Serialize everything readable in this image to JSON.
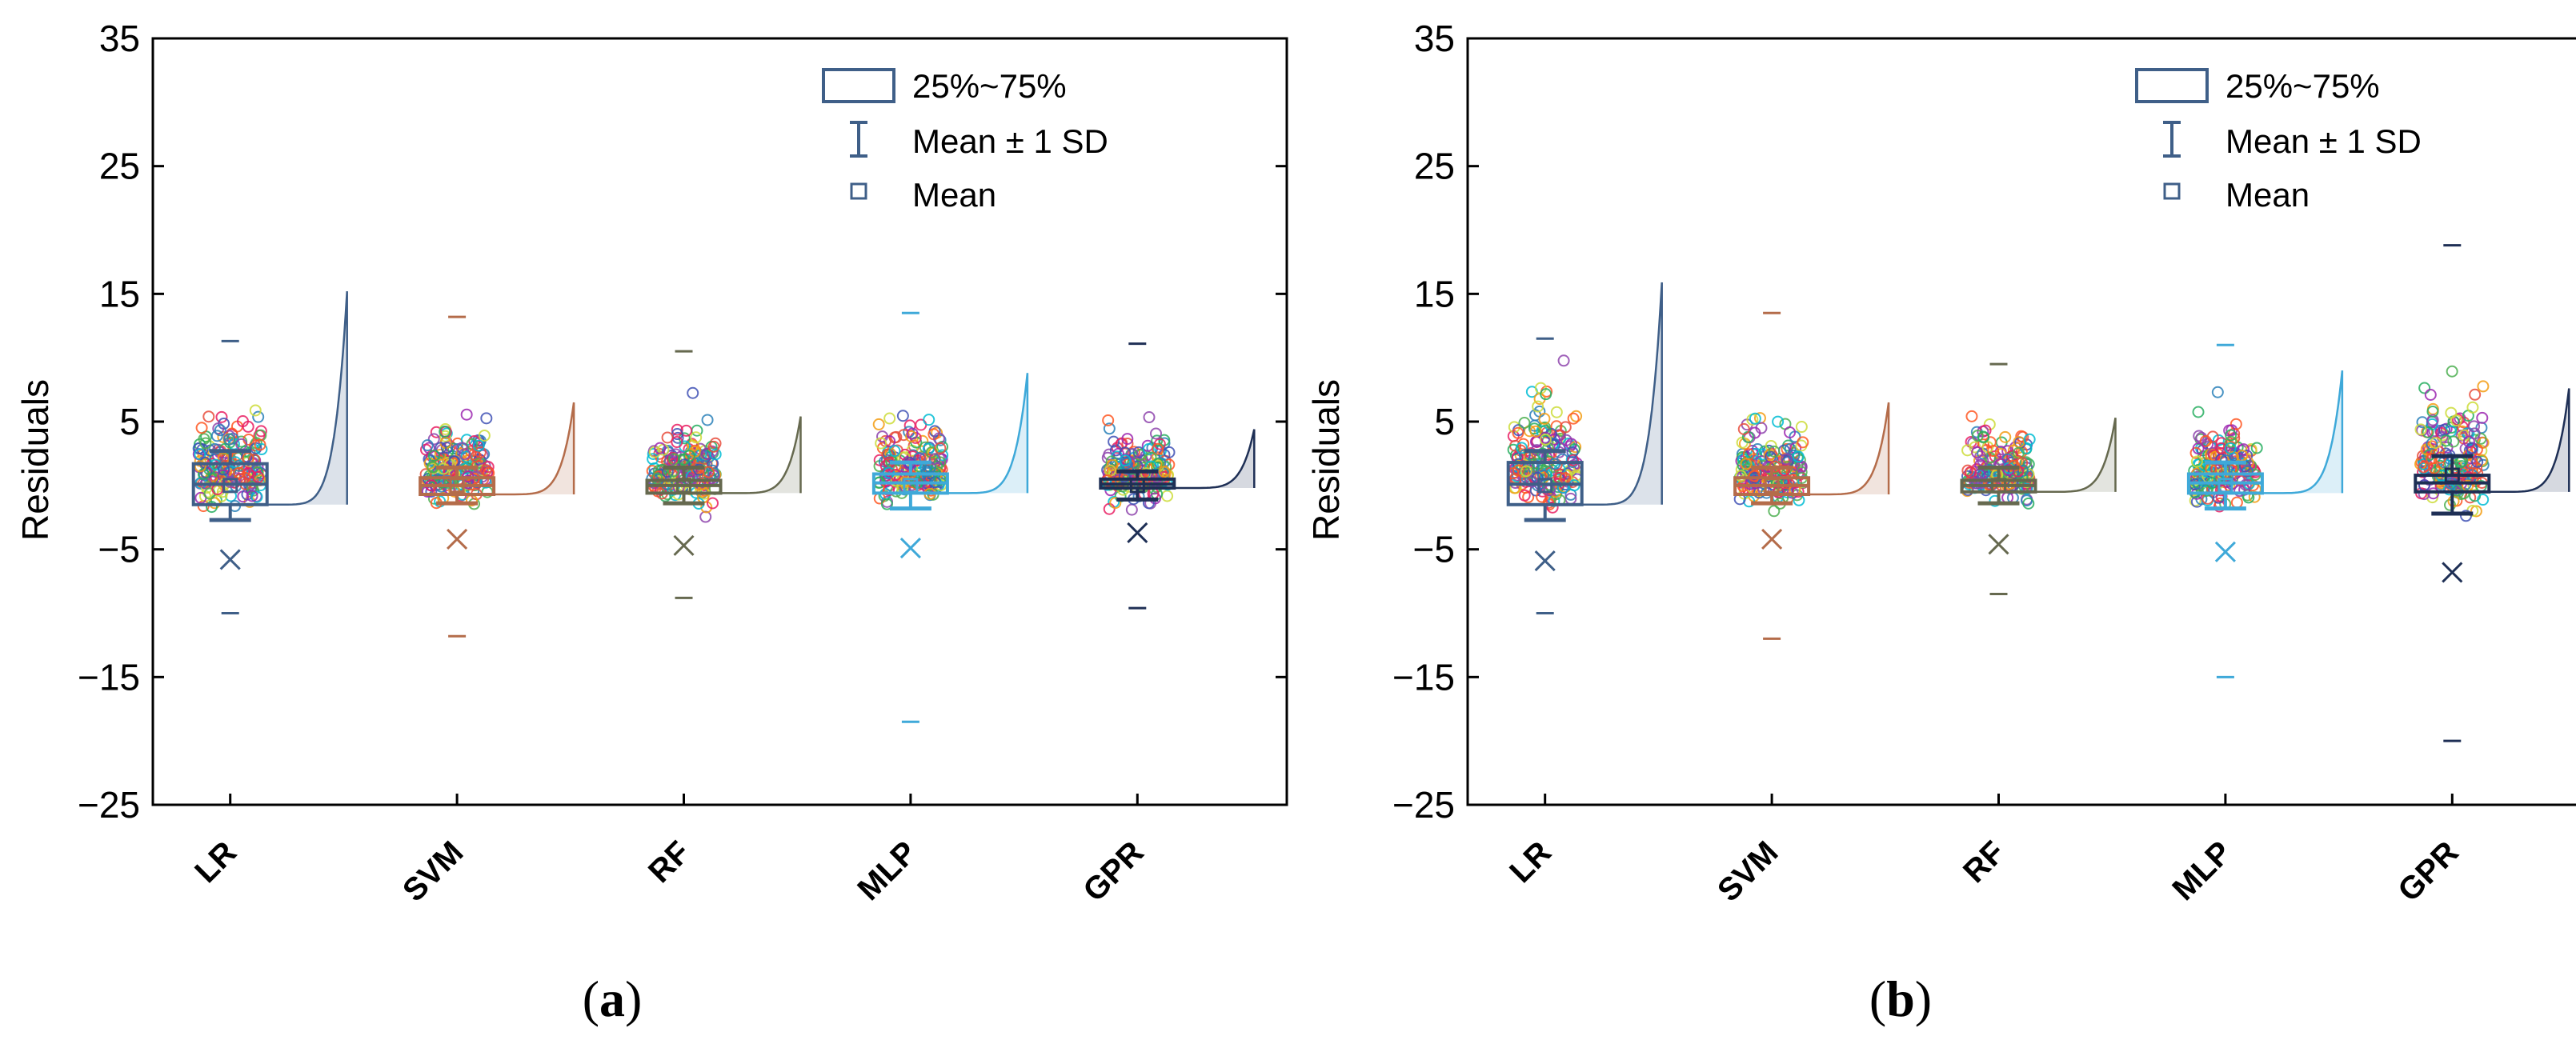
{
  "chart_data": [
    {
      "type": "box",
      "panel_label_open": "(",
      "panel_label_letter": "a",
      "panel_label_close": ")",
      "ylabel": "Residuals",
      "ylim": [
        -25,
        35
      ],
      "yticks": [
        -25,
        -15,
        -5,
        5,
        15,
        25,
        35
      ],
      "ytick_labels": [
        "−25",
        "−15",
        "−5",
        "5",
        "15",
        "25",
        "35"
      ],
      "categories": [
        "LR",
        "SVM",
        "RF",
        "MLP",
        "GPR"
      ],
      "colors": [
        "#3f5f88",
        "#b46c4a",
        "#66694f",
        "#3fa9d9",
        "#1e2f55"
      ],
      "legend": {
        "box": "25%~75%",
        "whisker": "Mean ± 1 SD",
        "mean": "Mean"
      },
      "series": [
        {
          "name": "LR",
          "q1": -1.5,
          "q3": 1.7,
          "median": 0.1,
          "mean": 0.0,
          "sd_low": -2.7,
          "sd_high": 2.7,
          "x_marker": -5.8,
          "max_marker": 11.3,
          "min_marker": -10.0,
          "dist_peak": 15.2,
          "spread": 2.6
        },
        {
          "name": "SVM",
          "q1": -0.7,
          "q3": 0.6,
          "median": 0.0,
          "mean": 0.0,
          "sd_low": -1.4,
          "sd_high": 1.4,
          "x_marker": -4.2,
          "max_marker": 13.2,
          "min_marker": -11.8,
          "dist_peak": 6.5,
          "spread": 2.0
        },
        {
          "name": "RF",
          "q1": -0.6,
          "q3": 0.4,
          "median": 0.0,
          "mean": 0.0,
          "sd_low": -1.4,
          "sd_high": 1.4,
          "x_marker": -4.7,
          "max_marker": 10.5,
          "min_marker": -8.8,
          "dist_peak": 5.4,
          "spread": 1.8
        },
        {
          "name": "MLP",
          "q1": -0.6,
          "q3": 0.9,
          "median": 0.2,
          "mean": 0.0,
          "sd_low": -1.8,
          "sd_high": 1.8,
          "x_marker": -4.9,
          "max_marker": 13.5,
          "min_marker": -18.5,
          "dist_peak": 8.8,
          "spread": 2.2
        },
        {
          "name": "GPR",
          "q1": -0.2,
          "q3": 0.5,
          "median": 0.1,
          "mean": 0.0,
          "sd_low": -1.1,
          "sd_high": 1.1,
          "x_marker": -3.7,
          "max_marker": 11.1,
          "min_marker": -9.6,
          "dist_peak": 4.4,
          "spread": 1.7
        }
      ]
    },
    {
      "type": "box",
      "panel_label_open": "(",
      "panel_label_letter": "b",
      "panel_label_close": ")",
      "ylabel": "Residuals",
      "ylim": [
        -25,
        35
      ],
      "yticks": [
        -25,
        -15,
        -5,
        5,
        15,
        25,
        35
      ],
      "ytick_labels": [
        "−25",
        "−15",
        "−5",
        "5",
        "15",
        "25",
        "35"
      ],
      "categories": [
        "LR",
        "SVM",
        "RF",
        "MLP",
        "GPR"
      ],
      "colors": [
        "#3f5f88",
        "#b46c4a",
        "#66694f",
        "#3fa9d9",
        "#1e2f55"
      ],
      "legend": {
        "box": "25%~75%",
        "whisker": "Mean ± 1 SD",
        "mean": "Mean"
      },
      "series": [
        {
          "name": "LR",
          "q1": -1.5,
          "q3": 1.8,
          "median": 0.1,
          "mean": 0.0,
          "sd_low": -2.7,
          "sd_high": 2.7,
          "x_marker": -5.9,
          "max_marker": 11.5,
          "min_marker": -10.0,
          "dist_peak": 15.9,
          "spread": 2.6
        },
        {
          "name": "SVM",
          "q1": -0.7,
          "q3": 0.6,
          "median": 0.0,
          "mean": 0.0,
          "sd_low": -1.4,
          "sd_high": 1.4,
          "x_marker": -4.2,
          "max_marker": 13.5,
          "min_marker": -12.0,
          "dist_peak": 6.5,
          "spread": 2.0
        },
        {
          "name": "RF",
          "q1": -0.5,
          "q3": 0.4,
          "median": 0.0,
          "mean": 0.0,
          "sd_low": -1.4,
          "sd_high": 1.4,
          "x_marker": -4.6,
          "max_marker": 9.5,
          "min_marker": -8.5,
          "dist_peak": 5.3,
          "spread": 1.8
        },
        {
          "name": "MLP",
          "q1": -0.6,
          "q3": 0.9,
          "median": 0.2,
          "mean": 0.0,
          "sd_low": -1.8,
          "sd_high": 1.8,
          "x_marker": -5.2,
          "max_marker": 11.0,
          "min_marker": -15.0,
          "dist_peak": 9.0,
          "spread": 2.2
        },
        {
          "name": "GPR",
          "q1": -0.5,
          "q3": 0.8,
          "median": 0.2,
          "mean": 0.8,
          "sd_low": -2.2,
          "sd_high": 2.3,
          "x_marker": -6.8,
          "max_marker": 18.8,
          "min_marker": -20.0,
          "dist_peak": 7.6,
          "spread": 3.2
        }
      ]
    }
  ]
}
